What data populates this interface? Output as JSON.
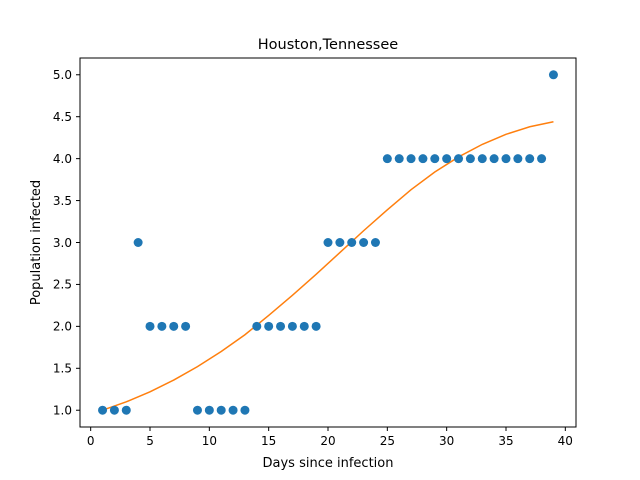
{
  "chart_data": {
    "type": "scatter",
    "title": "Houston,Tennessee",
    "xlabel": "Days since infection",
    "ylabel": "Population infected",
    "xlim": [
      -0.9,
      40.9
    ],
    "ylim": [
      0.8,
      5.2
    ],
    "xticks": [
      0,
      5,
      10,
      15,
      20,
      25,
      30,
      35,
      40
    ],
    "xtick_labels": [
      "0",
      "5",
      "10",
      "15",
      "20",
      "25",
      "30",
      "35",
      "40"
    ],
    "yticks": [
      1.0,
      1.5,
      2.0,
      2.5,
      3.0,
      3.5,
      4.0,
      4.5,
      5.0
    ],
    "ytick_labels": [
      "1.0",
      "1.5",
      "2.0",
      "2.5",
      "3.0",
      "3.5",
      "4.0",
      "4.5",
      "5.0"
    ],
    "grid": false,
    "series": [
      {
        "kind": "scatter",
        "color": "#1f77b4",
        "x": [
          1,
          2,
          3,
          4,
          5,
          6,
          7,
          8,
          9,
          10,
          11,
          12,
          13,
          14,
          15,
          16,
          17,
          18,
          19,
          20,
          21,
          22,
          23,
          24,
          25,
          26,
          27,
          28,
          29,
          30,
          31,
          32,
          33,
          34,
          35,
          36,
          37,
          38,
          39
        ],
        "y": [
          1,
          1,
          1,
          3,
          2,
          2,
          2,
          2,
          1,
          1,
          1,
          1,
          1,
          2,
          2,
          2,
          2,
          2,
          2,
          3,
          3,
          3,
          3,
          3,
          4,
          4,
          4,
          4,
          4,
          4,
          4,
          4,
          4,
          4,
          4,
          4,
          4,
          4,
          5
        ]
      },
      {
        "kind": "line",
        "color": "#ff7f0e",
        "x": [
          1,
          3,
          5,
          7,
          9,
          11,
          13,
          15,
          17,
          19,
          21,
          23,
          25,
          27,
          29,
          31,
          33,
          35,
          37,
          39
        ],
        "y": [
          1.0,
          1.1,
          1.22,
          1.36,
          1.52,
          1.7,
          1.9,
          2.13,
          2.37,
          2.62,
          2.88,
          3.14,
          3.39,
          3.63,
          3.84,
          4.02,
          4.17,
          4.29,
          4.38,
          4.44
        ]
      }
    ]
  }
}
